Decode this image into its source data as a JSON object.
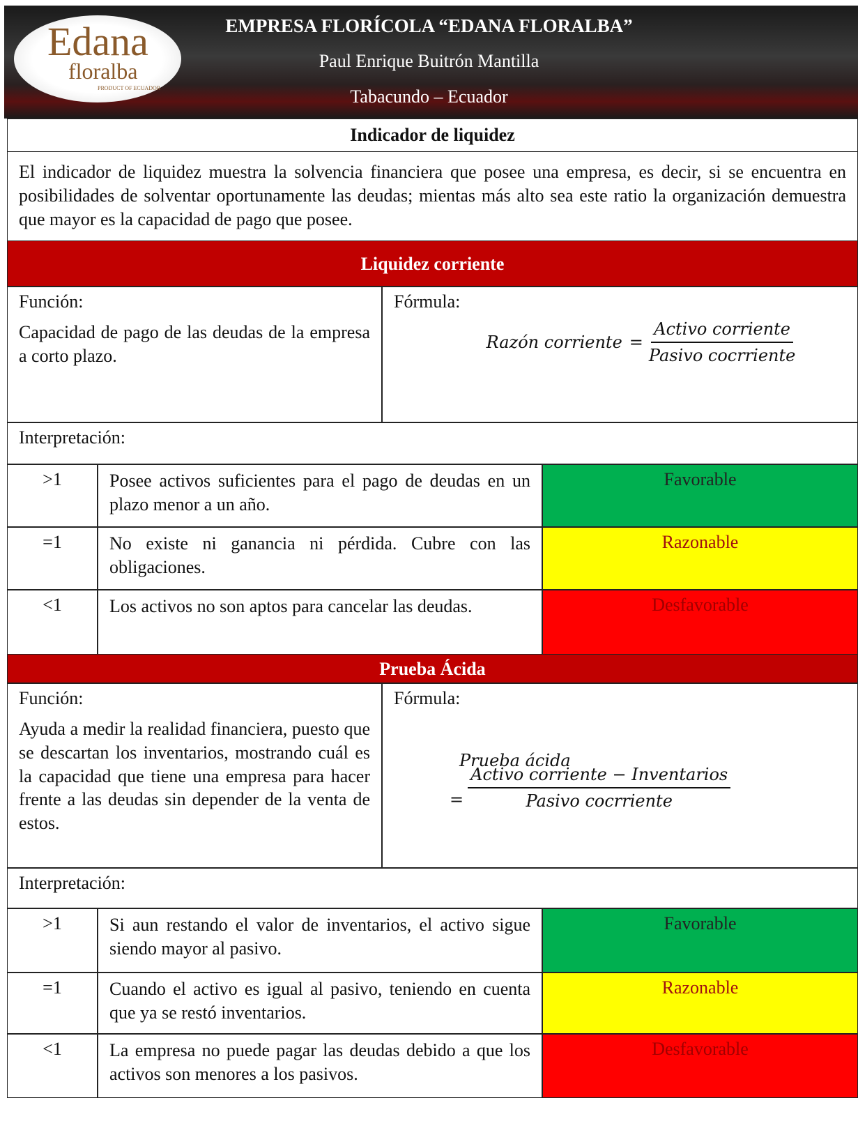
{
  "header": {
    "title": "EMPRESA FLORÍCOLA “EDANA FLORALBA”",
    "subtitle": "Paul Enrique Buitrón Mantilla",
    "location": "Tabacundo – Ecuador",
    "logo": {
      "name": "Edana",
      "name2": "floralba",
      "tagline": "PRODUCT OF ECUADOR"
    }
  },
  "intro": {
    "title": "Indicador de liquidez",
    "text": "El indicador de liquidez muestra la solvencia financiera que posee una empresa, es decir, si se encuentra en posibilidades de solventar oportunamente las deudas; mientas más alto sea este ratio la organización demuestra que mayor es la capacidad de pago que posee."
  },
  "sections": [
    {
      "title": "Liquidez corriente",
      "function_label": "Función:",
      "function_text": "Capacidad de pago de las deudas de la empresa a corto plazo.",
      "formula_label": "Fórmula:",
      "formula": {
        "lhs": "Razón corriente",
        "operator": "=",
        "numerator": "Activo corriente",
        "denominator": "Pasivo cocrriente"
      },
      "interpretation_label": "Interpretación:",
      "rows": [
        {
          "symbol": ">1",
          "text": "Posee activos suficientes para el pago de deudas en un plazo menor a un año.",
          "rating": "Favorable"
        },
        {
          "symbol": "=1",
          "text": "No existe ni ganancia ni pérdida. Cubre con las obligaciones.",
          "rating": "Razonable"
        },
        {
          "symbol": "<1",
          "text": "Los activos no son aptos para cancelar las deudas.",
          "rating": "Desfavorable"
        }
      ]
    },
    {
      "title": "Prueba Ácida",
      "function_label": "Función:",
      "function_text": "Ayuda a medir la realidad financiera, puesto que se descartan los inventarios, mostrando cuál es la capacidad que tiene una empresa para hacer frente a las deudas sin depender de la venta de estos.",
      "formula_label": "Fórmula:",
      "formula": {
        "lhs": "Prueba ácida",
        "operator": "=",
        "numerator": "Activo corriente − Inventarios",
        "denominator": "Pasivo cocrriente"
      },
      "interpretation_label": "Interpretación:",
      "rows": [
        {
          "symbol": ">1",
          "text": "Si aun restando el valor de inventarios, el activo sigue siendo mayor al pasivo.",
          "rating": "Favorable"
        },
        {
          "symbol": "=1",
          "text": "Cuando el activo es igual al pasivo, teniendo en cuenta que ya se restó inventarios.",
          "rating": "Razonable"
        },
        {
          "symbol": "<1",
          "text": "La empresa no puede pagar las deudas debido a que los activos son menores a los pasivos.",
          "rating": "Desfavorable"
        }
      ]
    }
  ]
}
